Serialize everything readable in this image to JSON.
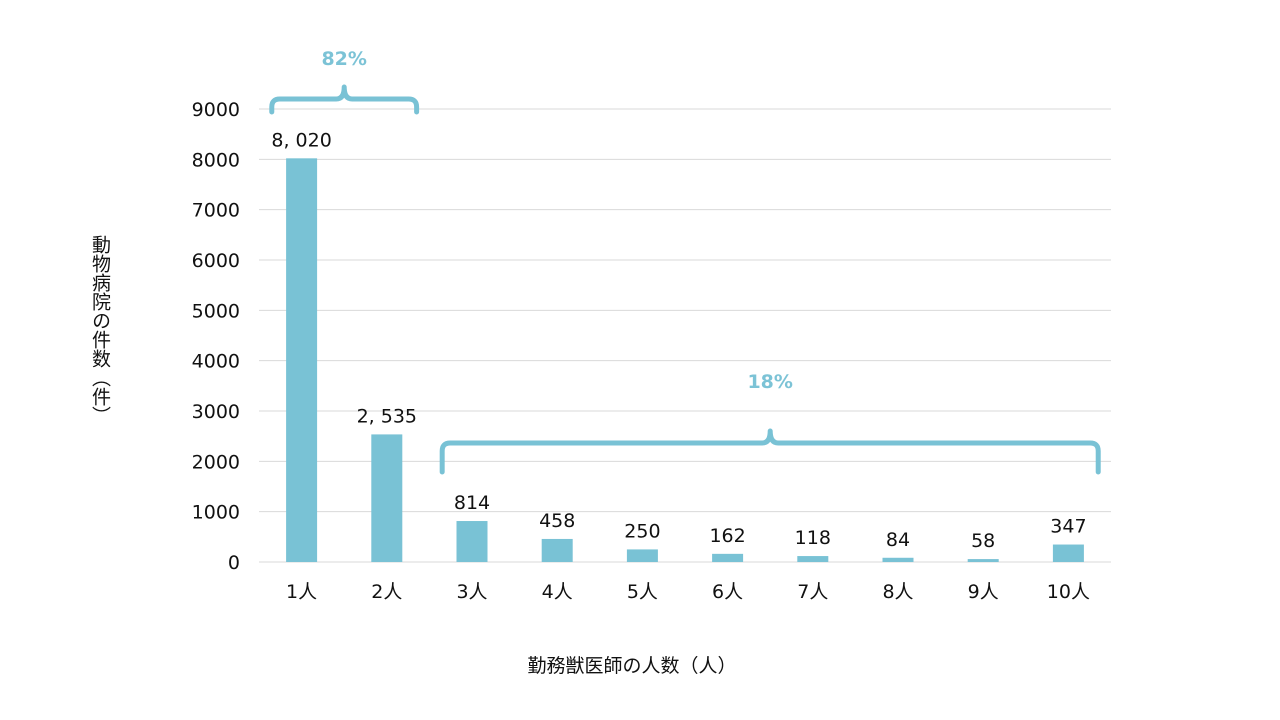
{
  "chart_data": {
    "type": "bar",
    "categories": [
      "1人",
      "2人",
      "3人",
      "4人",
      "5人",
      "6人",
      "7人",
      "8人",
      "9人",
      "10人"
    ],
    "values": [
      8020,
      2535,
      814,
      458,
      250,
      162,
      118,
      84,
      58,
      347
    ],
    "data_labels": [
      "8, 020",
      "2, 535",
      "814",
      "458",
      "250",
      "162",
      "118",
      "84",
      "58",
      "347"
    ],
    "xlabel": "勤務獣医師の人数（人）",
    "ylabel": "動物病院の件数（件）",
    "ylim": [
      0,
      9000
    ],
    "yticks": [
      "0",
      "1000",
      "2000",
      "3000",
      "4000",
      "5000",
      "6000",
      "7000",
      "8000",
      "9000"
    ],
    "grid": true,
    "bar_color": "#79c2d5",
    "annotations": [
      {
        "text": "82%",
        "from_category": 0,
        "to_category": 1,
        "color": "#7cc3d6"
      },
      {
        "text": "18%",
        "from_category": 2,
        "to_category": 9,
        "color": "#7cc3d6"
      }
    ]
  }
}
